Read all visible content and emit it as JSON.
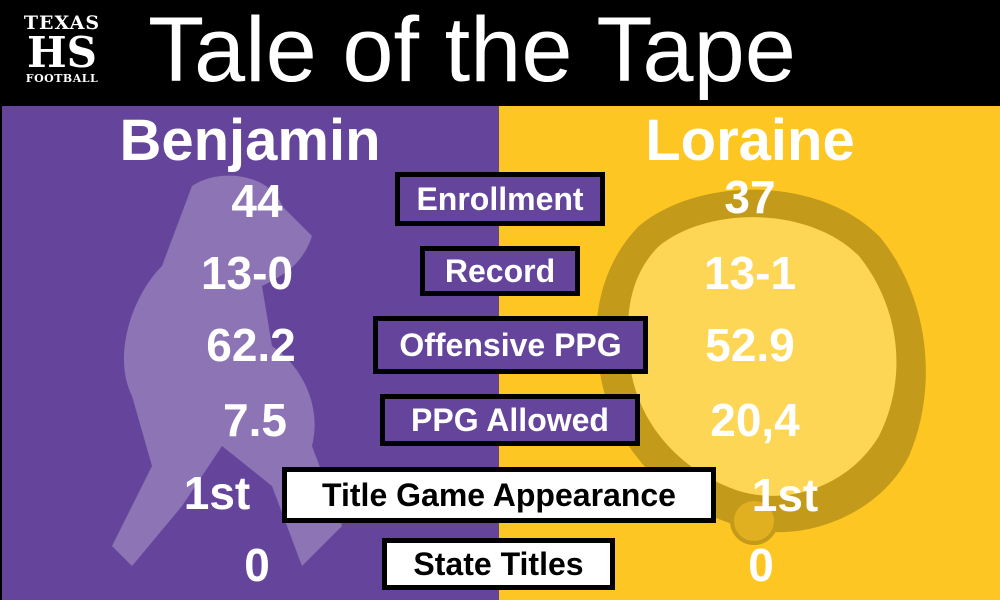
{
  "logo": {
    "line1": "TEXAS",
    "line2": "HS",
    "line3": "FOOTBALL"
  },
  "title": "Tale of the Tape",
  "colors": {
    "left": "#65459c",
    "right": "#fdc623",
    "header": "#000000"
  },
  "teams": {
    "left": "Benjamin",
    "right": "Loraine"
  },
  "rows": [
    {
      "label": "Enrollment",
      "left": "44",
      "right": "37"
    },
    {
      "label": "Record",
      "left": "13-0",
      "right": "13-1"
    },
    {
      "label": "Offensive PPG",
      "left": "62.2",
      "right": "52.9"
    },
    {
      "label": "PPG Allowed",
      "left": "7.5",
      "right": "20,4"
    },
    {
      "label": "Title Game Appearance",
      "left": "1st",
      "right": "1st"
    },
    {
      "label": "State Titles",
      "left": "0",
      "right": "0"
    }
  ]
}
